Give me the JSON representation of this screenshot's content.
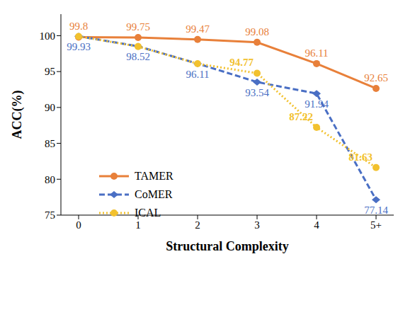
{
  "chart_data": {
    "type": "line",
    "x_label": "Structural Complexity",
    "y_label": "ACC(%)",
    "categories": [
      "0",
      "1",
      "2",
      "3",
      "4",
      "5+"
    ],
    "ylim": [
      75,
      103
    ],
    "yticks": [
      75,
      80,
      85,
      90,
      95,
      100
    ],
    "grid": false,
    "legend": "left",
    "data_labels": true,
    "series": [
      {
        "name": "TAMER",
        "color": "#e8803a",
        "marker": "circle",
        "line_style": "solid",
        "values": [
          99.8,
          99.75,
          99.47,
          99.08,
          96.11,
          92.65
        ]
      },
      {
        "name": "CoMER",
        "color": "#4a6fc4",
        "marker": "diamond",
        "line_style": "dashed",
        "values": [
          99.93,
          98.52,
          96.11,
          93.54,
          91.94,
          77.14
        ]
      },
      {
        "name": "ICAL",
        "color": "#f2c12e",
        "marker": "circle",
        "line_style": "dotted",
        "values": [
          99.9,
          98.5,
          96.1,
          94.77,
          87.22,
          81.63
        ],
        "value_labels": [
          null,
          null,
          null,
          "94.77",
          "87.22",
          "81.63"
        ]
      }
    ]
  }
}
